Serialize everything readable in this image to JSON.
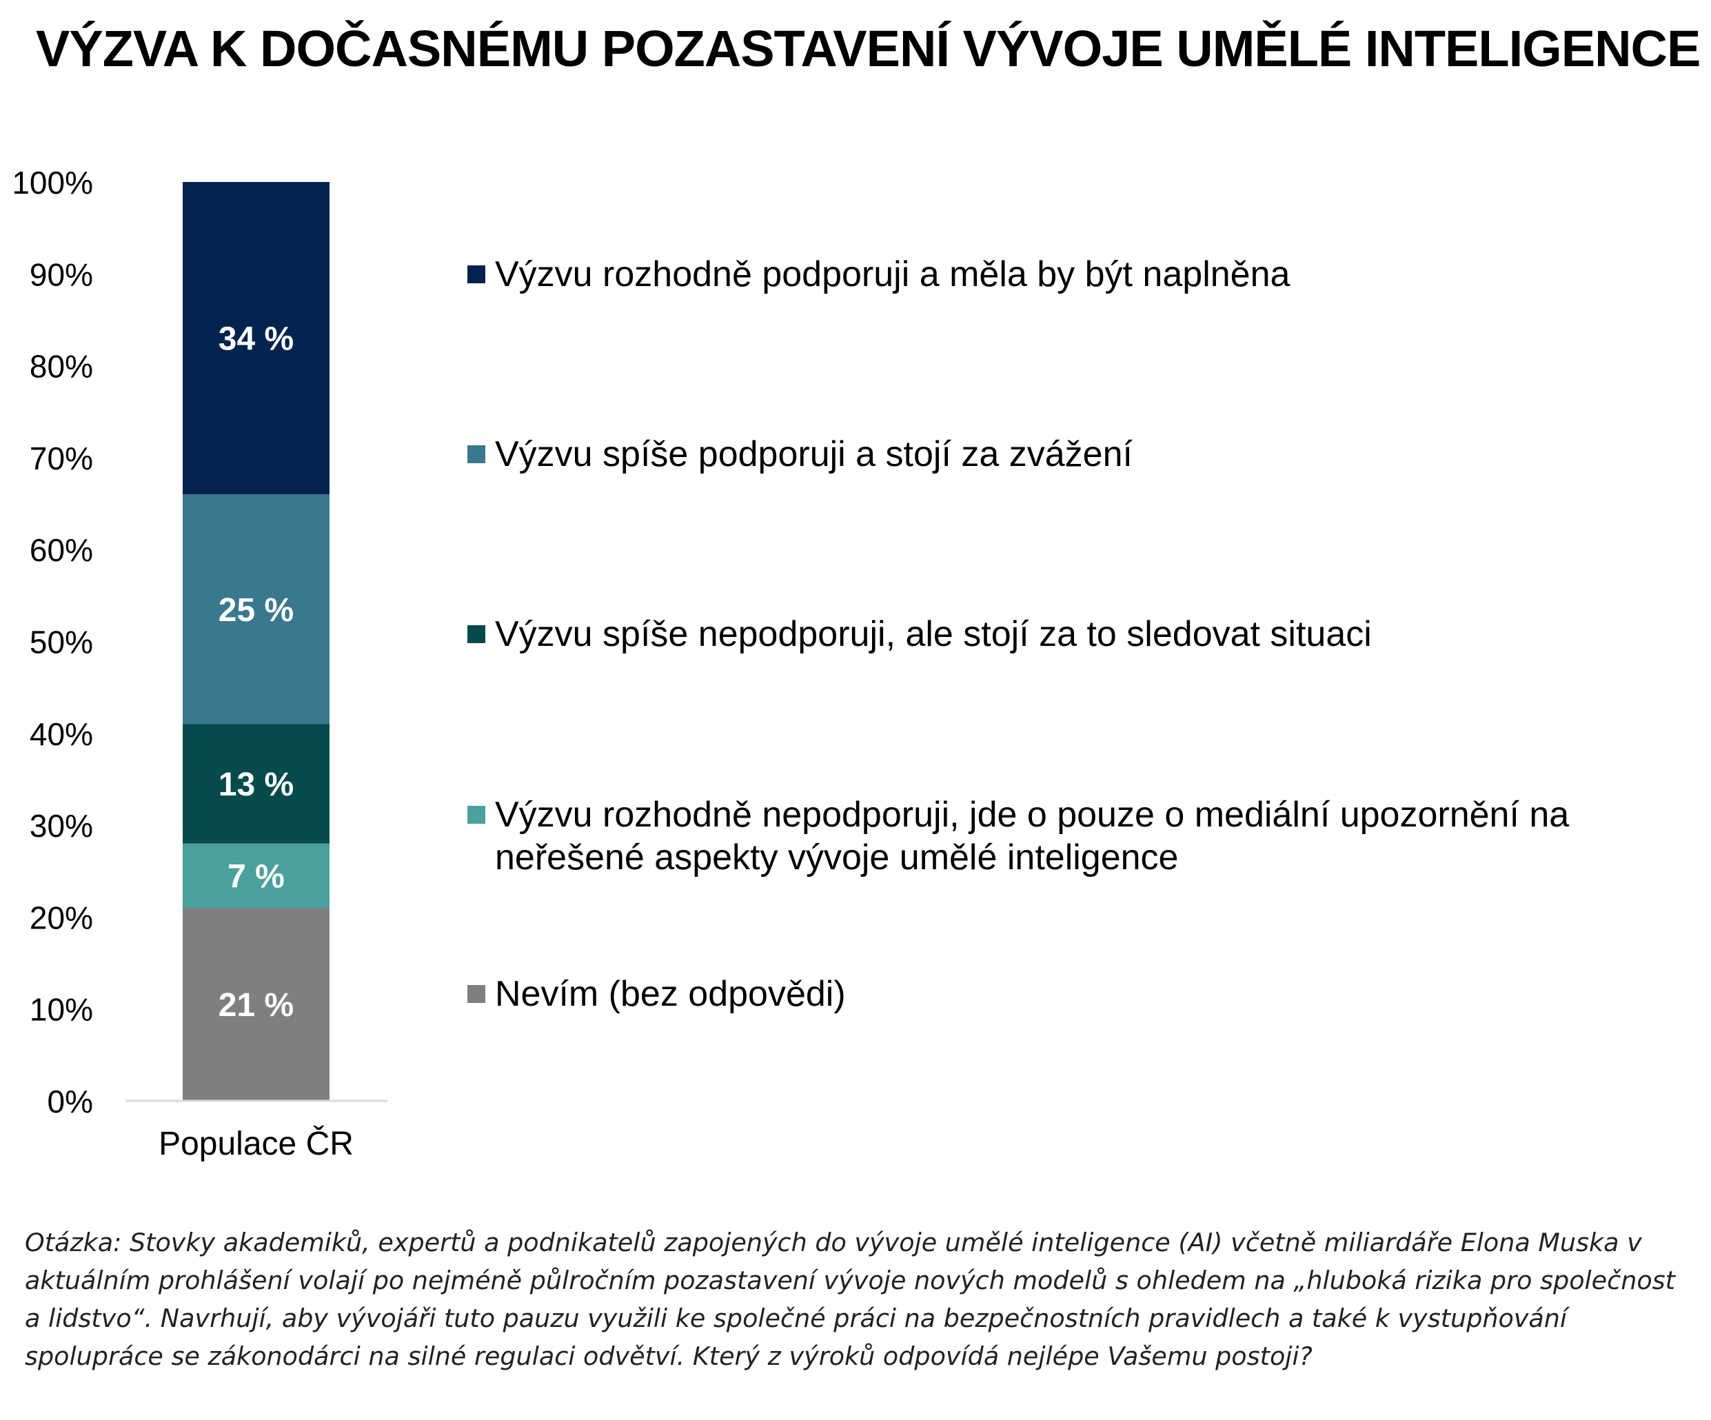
{
  "title": "VÝZVA K DOČASNÉMU POZASTAVENÍ VÝVOJE UMĚLÉ INTELIGENCE",
  "note": "Otázka: Stovky akademiků, expertů a podnikatelů zapojených do vývoje umělé inteligence (AI) včetně miliardáře Elona Muska v aktuálním prohlášení volají po nejméně půlročním pozastavení vývoje nových modelů s ohledem na „hluboká rizika pro společnost a lidstvo“. Navrhují, aby vývojáři tuto pauzu využili ke společné práci na bezpečnostních pravidlech a také k vystupňování spolupráce se zákonodárci na silné regulaci odvětví. Který z výroků odpovídá nejlépe Vašemu postoji?",
  "chart_data": {
    "type": "bar",
    "stacked": true,
    "categories": [
      "Populace ČR"
    ],
    "ylim": [
      0,
      100
    ],
    "yticks": [
      "0%",
      "10%",
      "20%",
      "30%",
      "40%",
      "50%",
      "60%",
      "70%",
      "80%",
      "90%",
      "100%"
    ],
    "grid": false,
    "legend_position": "right",
    "series": [
      {
        "name": "Nevím (bez odpovědi)",
        "values": [
          21
        ],
        "label": "21 %",
        "color": "#7f7f7f"
      },
      {
        "name": "Výzvu rozhodně nepodporuji, jde o pouze o mediální upozornění na neřešené aspekty vývoje umělé inteligence",
        "values": [
          7
        ],
        "label": "7 %",
        "color": "#4aa09c"
      },
      {
        "name": "Výzvu spíše nepodporuji, ale stojí za to sledovat situaci",
        "values": [
          13
        ],
        "label": "13 %",
        "color": "#064b4b"
      },
      {
        "name": "Výzvu spíše podporuji a stojí za zvážení",
        "values": [
          25
        ],
        "label": "25 %",
        "color": "#3a788d"
      },
      {
        "name": "Výzvu rozhodně podporuji a měla by být naplněna",
        "values": [
          34
        ],
        "label": "34 %",
        "color": "#03234f"
      }
    ]
  }
}
